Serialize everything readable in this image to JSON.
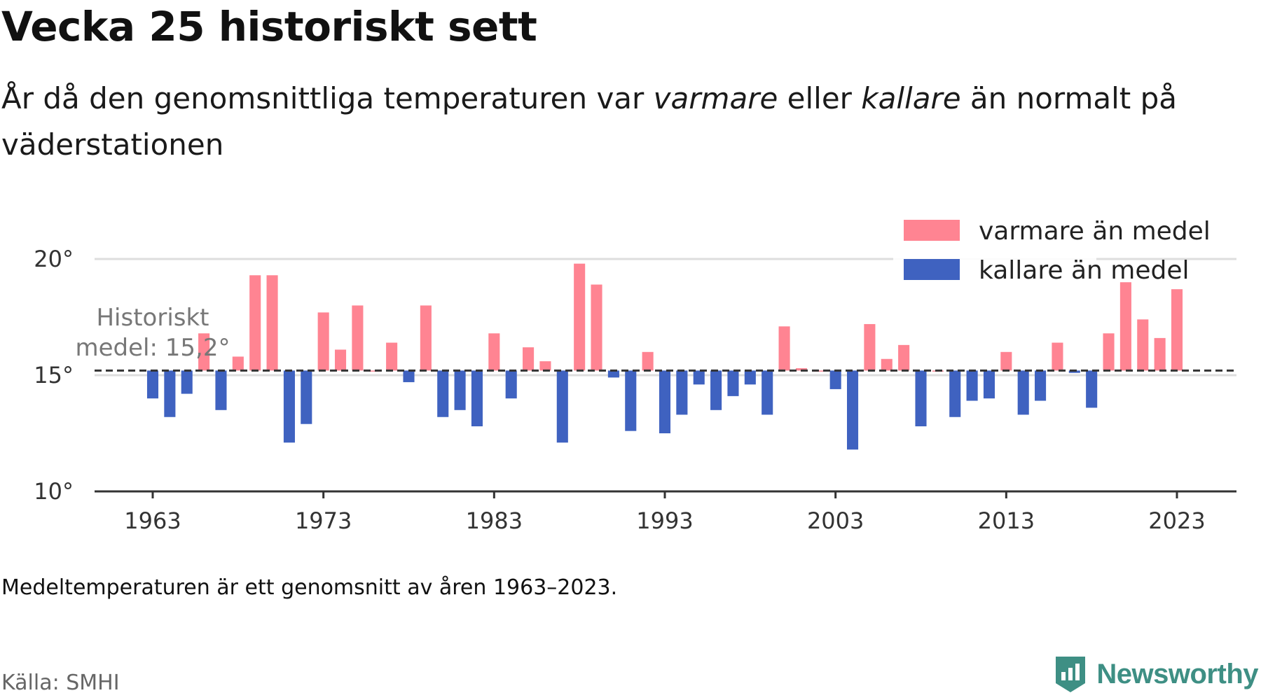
{
  "header": {
    "title": "Vecka 25 historiskt sett",
    "subtitle_part1": "År då den genomsnittliga temperaturen var ",
    "subtitle_em1": "varmare",
    "subtitle_part2": " eller ",
    "subtitle_em2": "kallare",
    "subtitle_part3": " än normalt på väderstationen"
  },
  "footer": {
    "note": "Medeltemperaturen är ett genomsnitt av åren 1963–2023.",
    "source": "Källa: SMHI",
    "brand": "Newsworthy"
  },
  "colors": {
    "warm": "#ff8492",
    "cold": "#3f62c0",
    "axis": "#333333",
    "grid": "#dddddd",
    "reference": "#333333"
  },
  "chart_data": {
    "type": "bar",
    "x_label": "",
    "y_label": "",
    "baseline": 15.2,
    "baseline_label_line1": "Historiskt",
    "baseline_label_line2": "medel: 15,2°",
    "ylim": [
      10,
      21
    ],
    "y_ticks": [
      10,
      15,
      20
    ],
    "y_tick_labels": [
      "10°",
      "15°",
      "20°"
    ],
    "x_ticks": [
      1963,
      1973,
      1983,
      1993,
      2003,
      2013,
      2023
    ],
    "x_tick_labels": [
      "1963",
      "1973",
      "1983",
      "1993",
      "2003",
      "2013",
      "2023"
    ],
    "grid": "horizontal",
    "legend_position": "top-right",
    "series": [
      {
        "name": "varmare än medel",
        "color_key": "warm"
      },
      {
        "name": "kallare än medel",
        "color_key": "cold"
      }
    ],
    "years": [
      1963,
      1964,
      1965,
      1966,
      1967,
      1968,
      1969,
      1970,
      1971,
      1972,
      1973,
      1974,
      1975,
      1976,
      1977,
      1978,
      1979,
      1980,
      1981,
      1982,
      1983,
      1984,
      1985,
      1986,
      1987,
      1988,
      1989,
      1990,
      1991,
      1992,
      1993,
      1994,
      1995,
      1996,
      1997,
      1998,
      1999,
      2000,
      2001,
      2002,
      2003,
      2004,
      2005,
      2006,
      2007,
      2008,
      2009,
      2010,
      2011,
      2012,
      2013,
      2014,
      2015,
      2016,
      2017,
      2018,
      2019,
      2020,
      2021,
      2022,
      2023
    ],
    "values": [
      14.0,
      13.2,
      14.2,
      16.8,
      13.5,
      15.8,
      19.3,
      19.3,
      12.1,
      12.9,
      17.7,
      16.1,
      18.0,
      15.2,
      16.4,
      14.7,
      18.0,
      13.2,
      13.5,
      12.8,
      16.8,
      14.0,
      16.2,
      15.6,
      12.1,
      19.8,
      18.9,
      14.9,
      12.6,
      16.0,
      12.5,
      13.3,
      14.6,
      13.5,
      14.1,
      14.6,
      13.3,
      17.1,
      15.3,
      15.2,
      14.4,
      11.8,
      17.2,
      15.7,
      16.3,
      12.8,
      15.2,
      13.2,
      13.9,
      14.0,
      16.0,
      13.3,
      13.9,
      16.4,
      15.1,
      13.6,
      16.8,
      19.0,
      17.4,
      16.6,
      18.7
    ]
  }
}
